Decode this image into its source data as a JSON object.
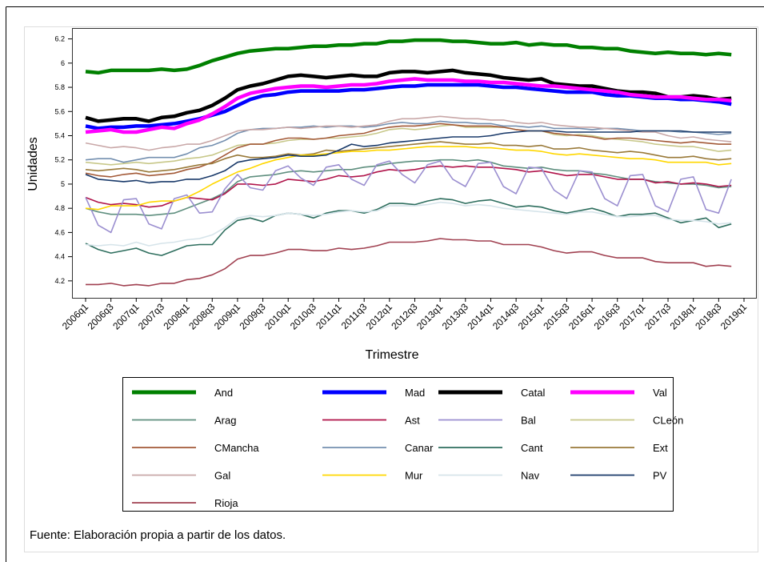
{
  "chart_data": {
    "type": "line",
    "ylabel": "Unidades",
    "xlabel": "Trimestre",
    "note": "Fuente: Elaboración propia a partir de los datos.",
    "categories": [
      "2006q1",
      null,
      "2006q3",
      null,
      "2007q1",
      null,
      "2007q3",
      null,
      "2008q1",
      null,
      "2008q3",
      null,
      "2009q1",
      null,
      "2009q3",
      null,
      "2010q1",
      null,
      "2010q3",
      null,
      "2011q1",
      null,
      "2011q3",
      null,
      "2012q1",
      null,
      "2012q3",
      null,
      "2013q1",
      null,
      "2013q3",
      null,
      "2014q1",
      null,
      "2014q3",
      null,
      "2015q1",
      null,
      "2015q3",
      null,
      "2016q1",
      null,
      "2016q3",
      null,
      "2017q1",
      null,
      "2017q3",
      null,
      "2018q1",
      null,
      "2018q3",
      null,
      "2019q1"
    ],
    "ylim": [
      4.06,
      6.29
    ],
    "yticks": [
      4.2,
      4.4,
      4.6,
      4.8,
      5,
      5.2,
      5.4,
      5.6,
      5.8,
      6,
      6.2
    ],
    "grid": false,
    "series": [
      {
        "name": "And",
        "color": "#008000",
        "values": [
          5.93,
          5.92,
          5.94,
          5.94,
          5.94,
          5.94,
          5.95,
          5.94,
          5.95,
          5.98,
          6.02,
          6.05,
          6.08,
          6.1,
          6.11,
          6.12,
          6.12,
          6.13,
          6.14,
          6.14,
          6.15,
          6.15,
          6.16,
          6.16,
          6.18,
          6.18,
          6.19,
          6.19,
          6.19,
          6.18,
          6.18,
          6.17,
          6.16,
          6.16,
          6.17,
          6.15,
          6.16,
          6.15,
          6.15,
          6.13,
          6.13,
          6.12,
          6.12,
          6.1,
          6.09,
          6.08,
          6.09,
          6.08,
          6.08,
          6.07,
          6.08,
          6.07,
          null
        ]
      },
      {
        "name": "Mad",
        "color": "#0000ff",
        "values": [
          5.48,
          5.46,
          5.47,
          5.47,
          5.48,
          5.48,
          5.49,
          5.5,
          5.52,
          5.54,
          5.57,
          5.6,
          5.65,
          5.7,
          5.73,
          5.74,
          5.76,
          5.77,
          5.77,
          5.77,
          5.77,
          5.78,
          5.78,
          5.79,
          5.8,
          5.81,
          5.81,
          5.82,
          5.82,
          5.82,
          5.82,
          5.82,
          5.81,
          5.8,
          5.8,
          5.79,
          5.78,
          5.77,
          5.76,
          5.76,
          5.76,
          5.74,
          5.73,
          5.73,
          5.72,
          5.71,
          5.71,
          5.7,
          5.7,
          5.69,
          5.68,
          5.66,
          null
        ]
      },
      {
        "name": "Catal",
        "color": "#000000",
        "values": [
          5.55,
          5.52,
          5.53,
          5.54,
          5.54,
          5.52,
          5.55,
          5.56,
          5.59,
          5.61,
          5.65,
          5.71,
          5.78,
          5.81,
          5.83,
          5.86,
          5.89,
          5.9,
          5.89,
          5.88,
          5.89,
          5.9,
          5.89,
          5.89,
          5.92,
          5.93,
          5.93,
          5.92,
          5.93,
          5.94,
          5.92,
          5.91,
          5.9,
          5.88,
          5.87,
          5.86,
          5.87,
          5.83,
          5.82,
          5.81,
          5.81,
          5.79,
          5.77,
          5.76,
          5.76,
          5.75,
          5.72,
          5.72,
          5.73,
          5.72,
          5.7,
          5.71,
          null
        ]
      },
      {
        "name": "Val",
        "color": "#ff00ff",
        "values": [
          5.43,
          5.44,
          5.45,
          5.43,
          5.43,
          5.45,
          5.47,
          5.46,
          5.5,
          5.53,
          5.58,
          5.64,
          5.71,
          5.75,
          5.77,
          5.79,
          5.8,
          5.81,
          5.81,
          5.8,
          5.81,
          5.82,
          5.82,
          5.83,
          5.85,
          5.86,
          5.87,
          5.86,
          5.86,
          5.86,
          5.85,
          5.85,
          5.84,
          5.84,
          5.83,
          5.82,
          5.81,
          5.81,
          5.8,
          5.79,
          5.78,
          5.77,
          5.76,
          5.74,
          5.73,
          5.72,
          5.72,
          5.72,
          5.71,
          5.7,
          5.7,
          5.69,
          null
        ]
      },
      {
        "name": "Arag",
        "color": "#5f8f7f",
        "values": [
          4.8,
          4.77,
          4.75,
          4.75,
          4.75,
          4.74,
          4.75,
          4.76,
          4.8,
          4.84,
          4.88,
          4.93,
          5.02,
          5.06,
          5.07,
          5.08,
          5.1,
          5.11,
          5.1,
          5.11,
          5.12,
          5.12,
          5.14,
          5.15,
          5.17,
          5.18,
          5.19,
          5.19,
          5.2,
          5.2,
          5.19,
          5.2,
          5.18,
          5.15,
          5.14,
          5.13,
          5.14,
          5.12,
          5.11,
          5.11,
          5.09,
          5.08,
          5.06,
          5.04,
          5.04,
          5.02,
          5.01,
          5.0,
          5.0,
          4.99,
          4.97,
          4.98,
          null
        ]
      },
      {
        "name": "Ast",
        "color": "#b0144a",
        "values": [
          4.89,
          4.85,
          4.83,
          4.84,
          4.83,
          4.81,
          4.82,
          4.86,
          4.89,
          4.88,
          4.87,
          4.92,
          5.0,
          5.0,
          4.99,
          5.0,
          5.04,
          5.03,
          5.02,
          5.04,
          5.07,
          5.06,
          5.07,
          5.1,
          5.12,
          5.11,
          5.12,
          5.14,
          5.15,
          5.14,
          5.15,
          5.14,
          5.14,
          5.13,
          5.12,
          5.1,
          5.11,
          5.09,
          5.07,
          5.08,
          5.08,
          5.06,
          5.04,
          5.04,
          5.04,
          5.01,
          5.02,
          5.0,
          5.01,
          5.0,
          4.98,
          4.99,
          null
        ]
      },
      {
        "name": "Bal",
        "color": "#9b8fd0",
        "values": [
          4.89,
          4.66,
          4.6,
          4.87,
          4.88,
          4.67,
          4.63,
          4.88,
          4.91,
          4.76,
          4.77,
          4.96,
          5.08,
          4.97,
          4.95,
          5.11,
          5.15,
          5.05,
          4.99,
          5.14,
          5.16,
          5.04,
          4.99,
          5.16,
          5.19,
          5.08,
          5.01,
          5.16,
          5.19,
          5.04,
          4.98,
          5.17,
          5.18,
          4.98,
          4.92,
          5.14,
          5.13,
          4.95,
          4.88,
          5.11,
          5.1,
          4.88,
          4.82,
          5.07,
          5.08,
          4.82,
          4.77,
          5.04,
          5.06,
          4.79,
          4.76,
          5.04,
          null
        ]
      },
      {
        "name": "CLeón",
        "color": "#c8c88a",
        "values": [
          5.18,
          5.17,
          5.16,
          5.17,
          5.18,
          5.17,
          5.18,
          5.19,
          5.21,
          5.22,
          5.24,
          5.28,
          5.32,
          5.33,
          5.33,
          5.34,
          5.36,
          5.37,
          5.37,
          5.38,
          5.38,
          5.39,
          5.4,
          5.42,
          5.45,
          5.46,
          5.45,
          5.46,
          5.48,
          5.49,
          5.47,
          5.47,
          5.47,
          5.47,
          5.45,
          5.44,
          5.44,
          5.41,
          5.4,
          5.41,
          5.4,
          5.38,
          5.37,
          5.36,
          5.35,
          5.33,
          5.32,
          5.31,
          5.31,
          5.29,
          5.27,
          5.28,
          null
        ]
      },
      {
        "name": "CMancha",
        "color": "#a35a38",
        "values": [
          5.09,
          5.07,
          5.06,
          5.08,
          5.09,
          5.07,
          5.08,
          5.09,
          5.12,
          5.14,
          5.18,
          5.24,
          5.3,
          5.33,
          5.33,
          5.36,
          5.38,
          5.38,
          5.37,
          5.38,
          5.4,
          5.41,
          5.42,
          5.45,
          5.47,
          5.48,
          5.48,
          5.49,
          5.5,
          5.49,
          5.48,
          5.48,
          5.48,
          5.47,
          5.45,
          5.44,
          5.44,
          5.42,
          5.41,
          5.4,
          5.39,
          5.37,
          5.38,
          5.38,
          5.37,
          5.36,
          5.35,
          5.34,
          5.35,
          5.34,
          5.33,
          5.33,
          null
        ]
      },
      {
        "name": "Canar",
        "color": "#7590b0",
        "values": [
          5.2,
          5.21,
          5.21,
          5.18,
          5.2,
          5.22,
          5.22,
          5.22,
          5.25,
          5.3,
          5.32,
          5.36,
          5.42,
          5.45,
          5.46,
          5.46,
          5.47,
          5.47,
          5.48,
          5.47,
          5.48,
          5.48,
          5.47,
          5.48,
          5.5,
          5.51,
          5.5,
          5.5,
          5.52,
          5.51,
          5.51,
          5.5,
          5.5,
          5.48,
          5.48,
          5.47,
          5.48,
          5.46,
          5.46,
          5.46,
          5.45,
          5.46,
          5.46,
          5.45,
          5.44,
          5.44,
          5.44,
          5.43,
          5.43,
          5.42,
          5.41,
          5.42,
          null
        ]
      },
      {
        "name": "Cant",
        "color": "#2e6e5e",
        "values": [
          4.51,
          4.46,
          4.43,
          4.45,
          4.47,
          4.43,
          4.41,
          4.45,
          4.49,
          4.5,
          4.5,
          4.62,
          4.7,
          4.72,
          4.69,
          4.74,
          4.76,
          4.75,
          4.72,
          4.76,
          4.78,
          4.78,
          4.76,
          4.79,
          4.84,
          4.84,
          4.83,
          4.86,
          4.88,
          4.87,
          4.84,
          4.86,
          4.87,
          4.84,
          4.81,
          4.82,
          4.81,
          4.78,
          4.76,
          4.78,
          4.8,
          4.77,
          4.73,
          4.75,
          4.75,
          4.76,
          4.72,
          4.68,
          4.7,
          4.72,
          4.64,
          4.67,
          null
        ]
      },
      {
        "name": "Ext",
        "color": "#9a7a3a",
        "values": [
          5.12,
          5.11,
          5.12,
          5.13,
          5.12,
          5.1,
          5.11,
          5.12,
          5.14,
          5.16,
          5.17,
          5.21,
          5.24,
          5.22,
          5.22,
          5.23,
          5.25,
          5.24,
          5.25,
          5.28,
          5.27,
          5.28,
          5.29,
          5.3,
          5.31,
          5.32,
          5.33,
          5.34,
          5.35,
          5.34,
          5.33,
          5.33,
          5.34,
          5.32,
          5.32,
          5.31,
          5.32,
          5.29,
          5.29,
          5.3,
          5.28,
          5.27,
          5.26,
          5.27,
          5.26,
          5.24,
          5.22,
          5.22,
          5.23,
          5.21,
          5.2,
          5.21,
          null
        ]
      },
      {
        "name": "Gal",
        "color": "#c9a8a8",
        "values": [
          5.34,
          5.32,
          5.3,
          5.31,
          5.3,
          5.28,
          5.3,
          5.31,
          5.33,
          5.33,
          5.36,
          5.4,
          5.44,
          5.45,
          5.45,
          5.46,
          5.47,
          5.46,
          5.47,
          5.48,
          5.48,
          5.47,
          5.48,
          5.49,
          5.52,
          5.54,
          5.54,
          5.55,
          5.56,
          5.55,
          5.54,
          5.54,
          5.53,
          5.53,
          5.51,
          5.5,
          5.51,
          5.49,
          5.48,
          5.47,
          5.47,
          5.46,
          5.45,
          5.44,
          5.43,
          5.43,
          5.4,
          5.38,
          5.39,
          5.37,
          5.36,
          5.35,
          null
        ]
      },
      {
        "name": "Mur",
        "color": "#ffd700",
        "values": [
          4.8,
          4.79,
          4.82,
          4.82,
          4.82,
          4.85,
          4.86,
          4.86,
          4.89,
          4.94,
          5.0,
          5.05,
          5.1,
          5.13,
          5.17,
          5.2,
          5.22,
          5.24,
          5.24,
          5.25,
          5.26,
          5.27,
          5.27,
          5.28,
          5.28,
          5.29,
          5.3,
          5.31,
          5.31,
          5.31,
          5.31,
          5.3,
          5.3,
          5.29,
          5.28,
          5.28,
          5.27,
          5.25,
          5.24,
          5.25,
          5.24,
          5.23,
          5.22,
          5.21,
          5.21,
          5.2,
          5.18,
          5.18,
          5.18,
          5.18,
          5.16,
          5.17,
          null
        ]
      },
      {
        "name": "Nav",
        "color": "#d6e4ea",
        "values": [
          4.5,
          4.49,
          4.5,
          4.49,
          4.52,
          4.49,
          4.51,
          4.52,
          4.54,
          4.55,
          4.58,
          4.64,
          4.72,
          4.74,
          4.73,
          4.74,
          4.76,
          4.75,
          4.74,
          4.75,
          4.77,
          4.78,
          4.77,
          4.78,
          4.82,
          4.82,
          4.82,
          4.83,
          4.85,
          4.84,
          4.82,
          4.83,
          4.82,
          4.8,
          4.79,
          4.78,
          4.77,
          4.76,
          4.75,
          4.77,
          4.77,
          4.75,
          4.73,
          4.73,
          4.74,
          4.74,
          4.71,
          4.7,
          4.7,
          4.69,
          4.67,
          4.68,
          null
        ]
      },
      {
        "name": "PV",
        "color": "#1a3a6a",
        "values": [
          5.08,
          5.04,
          5.03,
          5.02,
          5.03,
          5.01,
          5.02,
          5.02,
          5.04,
          5.04,
          5.07,
          5.11,
          5.18,
          5.2,
          5.21,
          5.22,
          5.24,
          5.23,
          5.23,
          5.24,
          5.28,
          5.33,
          5.31,
          5.32,
          5.34,
          5.35,
          5.36,
          5.37,
          5.38,
          5.39,
          5.39,
          5.39,
          5.4,
          5.42,
          5.43,
          5.44,
          5.44,
          5.44,
          5.43,
          5.43,
          5.43,
          5.43,
          5.43,
          5.43,
          5.44,
          5.44,
          5.44,
          5.44,
          5.43,
          5.43,
          5.43,
          5.43,
          null
        ]
      },
      {
        "name": "Rioja",
        "color": "#a04050",
        "values": [
          4.17,
          4.17,
          4.18,
          4.16,
          4.17,
          4.16,
          4.18,
          4.18,
          4.21,
          4.22,
          4.25,
          4.3,
          4.38,
          4.41,
          4.41,
          4.43,
          4.46,
          4.46,
          4.45,
          4.45,
          4.47,
          4.46,
          4.47,
          4.49,
          4.52,
          4.52,
          4.52,
          4.53,
          4.55,
          4.54,
          4.54,
          4.53,
          4.53,
          4.5,
          4.5,
          4.5,
          4.48,
          4.45,
          4.43,
          4.44,
          4.44,
          4.41,
          4.39,
          4.39,
          4.39,
          4.36,
          4.35,
          4.35,
          4.35,
          4.32,
          4.33,
          4.32,
          null
        ]
      }
    ]
  }
}
